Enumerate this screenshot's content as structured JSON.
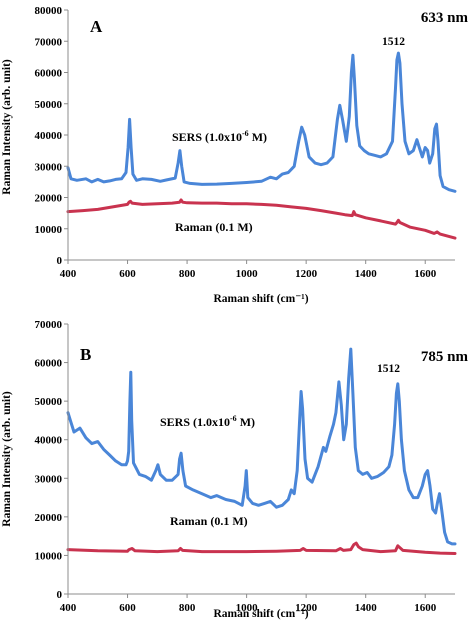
{
  "chart_data": [
    {
      "type": "line",
      "panel_label": "A",
      "wavelength_label": "633 nm",
      "xlabel": "Raman shift (cm⁻¹)",
      "ylabel": "Raman Intensity (arb. unit)",
      "xlim": [
        400,
        1700
      ],
      "ylim": [
        0,
        80000
      ],
      "xticks": [
        "400",
        "600",
        "800",
        "1000",
        "1200",
        "1400",
        "1600"
      ],
      "yticks": [
        "0",
        "10000",
        "20000",
        "30000",
        "40000",
        "50000",
        "60000",
        "70000",
        "80000"
      ],
      "peak_label": "1512",
      "annotations": {
        "sers_prefix": "SERS (1.0x10",
        "sers_exp": "-6",
        "sers_suffix": " M)",
        "raman": "Raman (0.1 M)"
      },
      "series": [
        {
          "key": "sers",
          "color": "#4a86d8",
          "points": [
            [
              400,
              29500
            ],
            [
              410,
              26000
            ],
            [
              430,
              25500
            ],
            [
              460,
              26000
            ],
            [
              480,
              25000
            ],
            [
              500,
              25800
            ],
            [
              520,
              25000
            ],
            [
              540,
              25300
            ],
            [
              560,
              25800
            ],
            [
              580,
              26000
            ],
            [
              595,
              28000
            ],
            [
              602,
              36000
            ],
            [
              607,
              45000
            ],
            [
              612,
              36000
            ],
            [
              618,
              27500
            ],
            [
              630,
              25500
            ],
            [
              650,
              26000
            ],
            [
              680,
              25800
            ],
            [
              710,
              25200
            ],
            [
              730,
              25600
            ],
            [
              760,
              26200
            ],
            [
              770,
              31000
            ],
            [
              776,
              35000
            ],
            [
              782,
              30000
            ],
            [
              790,
              25000
            ],
            [
              810,
              24500
            ],
            [
              850,
              24200
            ],
            [
              900,
              24300
            ],
            [
              950,
              24500
            ],
            [
              1000,
              24800
            ],
            [
              1050,
              25200
            ],
            [
              1080,
              26500
            ],
            [
              1100,
              26000
            ],
            [
              1120,
              27500
            ],
            [
              1140,
              28000
            ],
            [
              1160,
              30000
            ],
            [
              1175,
              38000
            ],
            [
              1185,
              42500
            ],
            [
              1195,
              40000
            ],
            [
              1210,
              33000
            ],
            [
              1230,
              31000
            ],
            [
              1250,
              30500
            ],
            [
              1270,
              31000
            ],
            [
              1290,
              33000
            ],
            [
              1305,
              45000
            ],
            [
              1313,
              49500
            ],
            [
              1322,
              45000
            ],
            [
              1335,
              38000
            ],
            [
              1345,
              46000
            ],
            [
              1352,
              60000
            ],
            [
              1357,
              65500
            ],
            [
              1362,
              58000
            ],
            [
              1370,
              43000
            ],
            [
              1380,
              36500
            ],
            [
              1395,
              35000
            ],
            [
              1410,
              34000
            ],
            [
              1430,
              33500
            ],
            [
              1450,
              33000
            ],
            [
              1470,
              34000
            ],
            [
              1490,
              38000
            ],
            [
              1500,
              55000
            ],
            [
              1505,
              64000
            ],
            [
              1510,
              66200
            ],
            [
              1515,
              63000
            ],
            [
              1522,
              50000
            ],
            [
              1532,
              38000
            ],
            [
              1545,
              34000
            ],
            [
              1560,
              35000
            ],
            [
              1572,
              38500
            ],
            [
              1580,
              36000
            ],
            [
              1590,
              33000
            ],
            [
              1600,
              36000
            ],
            [
              1608,
              35000
            ],
            [
              1615,
              31000
            ],
            [
              1625,
              34000
            ],
            [
              1632,
              42000
            ],
            [
              1638,
              43500
            ],
            [
              1643,
              38000
            ],
            [
              1650,
              27000
            ],
            [
              1660,
              23500
            ],
            [
              1680,
              22500
            ],
            [
              1700,
              22000
            ]
          ]
        },
        {
          "key": "raman",
          "color": "#c9334f",
          "points": [
            [
              400,
              15500
            ],
            [
              450,
              15800
            ],
            [
              500,
              16200
            ],
            [
              550,
              17000
            ],
            [
              600,
              17800
            ],
            [
              605,
              18500
            ],
            [
              610,
              18800
            ],
            [
              615,
              18200
            ],
            [
              650,
              17800
            ],
            [
              700,
              18000
            ],
            [
              750,
              18200
            ],
            [
              775,
              18500
            ],
            [
              780,
              19200
            ],
            [
              785,
              18500
            ],
            [
              800,
              18300
            ],
            [
              850,
              18200
            ],
            [
              900,
              18200
            ],
            [
              950,
              18000
            ],
            [
              1000,
              18000
            ],
            [
              1050,
              17800
            ],
            [
              1100,
              17500
            ],
            [
              1150,
              17000
            ],
            [
              1200,
              16500
            ],
            [
              1250,
              15800
            ],
            [
              1300,
              15000
            ],
            [
              1330,
              14500
            ],
            [
              1355,
              14200
            ],
            [
              1360,
              15500
            ],
            [
              1365,
              14500
            ],
            [
              1400,
              13500
            ],
            [
              1450,
              12500
            ],
            [
              1500,
              11500
            ],
            [
              1505,
              12000
            ],
            [
              1510,
              12700
            ],
            [
              1515,
              12000
            ],
            [
              1550,
              10500
            ],
            [
              1600,
              9500
            ],
            [
              1630,
              8500
            ],
            [
              1640,
              9000
            ],
            [
              1650,
              8300
            ],
            [
              1700,
              7000
            ]
          ]
        }
      ]
    },
    {
      "type": "line",
      "panel_label": "B",
      "wavelength_label": "785 nm",
      "xlabel": "Raman shift (cm⁻¹)",
      "ylabel": "Raman Intensity (arb. unit)",
      "xlim": [
        400,
        1700
      ],
      "ylim": [
        0,
        70000
      ],
      "xticks": [
        "400",
        "600",
        "800",
        "1000",
        "1200",
        "1400",
        "1600"
      ],
      "yticks": [
        "0",
        "10000",
        "20000",
        "30000",
        "40000",
        "50000",
        "60000",
        "70000"
      ],
      "peak_label": "1512",
      "annotations": {
        "sers_prefix": "SERS (1.0x10",
        "sers_exp": "-6",
        "sers_suffix": " M)",
        "raman": "Raman (0.1 M)"
      },
      "series": [
        {
          "key": "sers",
          "color": "#4a86d8",
          "points": [
            [
              400,
              47000
            ],
            [
              410,
              44500
            ],
            [
              420,
              42000
            ],
            [
              440,
              43000
            ],
            [
              460,
              40500
            ],
            [
              480,
              39000
            ],
            [
              500,
              39500
            ],
            [
              520,
              37500
            ],
            [
              540,
              36000
            ],
            [
              560,
              34500
            ],
            [
              580,
              33500
            ],
            [
              595,
              33500
            ],
            [
              600,
              34500
            ],
            [
              604,
              37000
            ],
            [
              608,
              50000
            ],
            [
              611,
              57500
            ],
            [
              614,
              45000
            ],
            [
              620,
              34000
            ],
            [
              640,
              31000
            ],
            [
              660,
              30500
            ],
            [
              680,
              29500
            ],
            [
              695,
              32000
            ],
            [
              702,
              33500
            ],
            [
              710,
              31000
            ],
            [
              730,
              29500
            ],
            [
              750,
              29500
            ],
            [
              770,
              31000
            ],
            [
              775,
              35000
            ],
            [
              780,
              36500
            ],
            [
              786,
              32000
            ],
            [
              795,
              28000
            ],
            [
              820,
              27000
            ],
            [
              850,
              26000
            ],
            [
              880,
              25000
            ],
            [
              900,
              25500
            ],
            [
              930,
              24500
            ],
            [
              960,
              24000
            ],
            [
              985,
              23000
            ],
            [
              995,
              28000
            ],
            [
              999,
              32000
            ],
            [
              1004,
              25000
            ],
            [
              1020,
              23500
            ],
            [
              1040,
              23000
            ],
            [
              1060,
              23500
            ],
            [
              1080,
              24000
            ],
            [
              1100,
              22500
            ],
            [
              1120,
              23000
            ],
            [
              1140,
              24500
            ],
            [
              1150,
              27000
            ],
            [
              1160,
              26000
            ],
            [
              1170,
              32000
            ],
            [
              1178,
              45000
            ],
            [
              1183,
              52500
            ],
            [
              1188,
              48000
            ],
            [
              1196,
              35000
            ],
            [
              1205,
              30000
            ],
            [
              1220,
              29000
            ],
            [
              1240,
              33000
            ],
            [
              1258,
              38000
            ],
            [
              1266,
              37000
            ],
            [
              1280,
              41000
            ],
            [
              1292,
              44000
            ],
            [
              1300,
              47000
            ],
            [
              1310,
              55000
            ],
            [
              1318,
              49000
            ],
            [
              1326,
              40000
            ],
            [
              1335,
              44000
            ],
            [
              1343,
              56000
            ],
            [
              1350,
              63500
            ],
            [
              1357,
              52000
            ],
            [
              1365,
              38000
            ],
            [
              1375,
              32000
            ],
            [
              1390,
              31000
            ],
            [
              1405,
              31500
            ],
            [
              1420,
              30000
            ],
            [
              1440,
              30500
            ],
            [
              1460,
              31500
            ],
            [
              1478,
              33000
            ],
            [
              1488,
              36000
            ],
            [
              1497,
              44000
            ],
            [
              1503,
              52000
            ],
            [
              1508,
              54500
            ],
            [
              1513,
              50000
            ],
            [
              1520,
              40000
            ],
            [
              1530,
              32000
            ],
            [
              1545,
              27000
            ],
            [
              1560,
              25000
            ],
            [
              1575,
              25000
            ],
            [
              1590,
              28000
            ],
            [
              1600,
              31000
            ],
            [
              1608,
              32000
            ],
            [
              1616,
              28000
            ],
            [
              1625,
              22000
            ],
            [
              1635,
              21000
            ],
            [
              1642,
              24000
            ],
            [
              1648,
              26000
            ],
            [
              1655,
              22000
            ],
            [
              1665,
              16000
            ],
            [
              1675,
              13500
            ],
            [
              1690,
              13000
            ],
            [
              1700,
              13000
            ]
          ]
        },
        {
          "key": "raman",
          "color": "#c9334f",
          "points": [
            [
              400,
              11500
            ],
            [
              500,
              11200
            ],
            [
              600,
              11100
            ],
            [
              605,
              11500
            ],
            [
              615,
              11800
            ],
            [
              625,
              11200
            ],
            [
              700,
              11000
            ],
            [
              770,
              11200
            ],
            [
              778,
              11800
            ],
            [
              785,
              11300
            ],
            [
              850,
              11000
            ],
            [
              1000,
              11000
            ],
            [
              1100,
              11100
            ],
            [
              1180,
              11300
            ],
            [
              1190,
              11800
            ],
            [
              1200,
              11300
            ],
            [
              1300,
              11200
            ],
            [
              1315,
              11800
            ],
            [
              1325,
              11300
            ],
            [
              1350,
              11500
            ],
            [
              1360,
              12800
            ],
            [
              1368,
              13200
            ],
            [
              1376,
              12200
            ],
            [
              1390,
              11500
            ],
            [
              1450,
              11000
            ],
            [
              1500,
              11200
            ],
            [
              1508,
              12500
            ],
            [
              1515,
              12000
            ],
            [
              1525,
              11300
            ],
            [
              1600,
              10800
            ],
            [
              1650,
              10600
            ],
            [
              1700,
              10500
            ]
          ]
        }
      ]
    }
  ]
}
